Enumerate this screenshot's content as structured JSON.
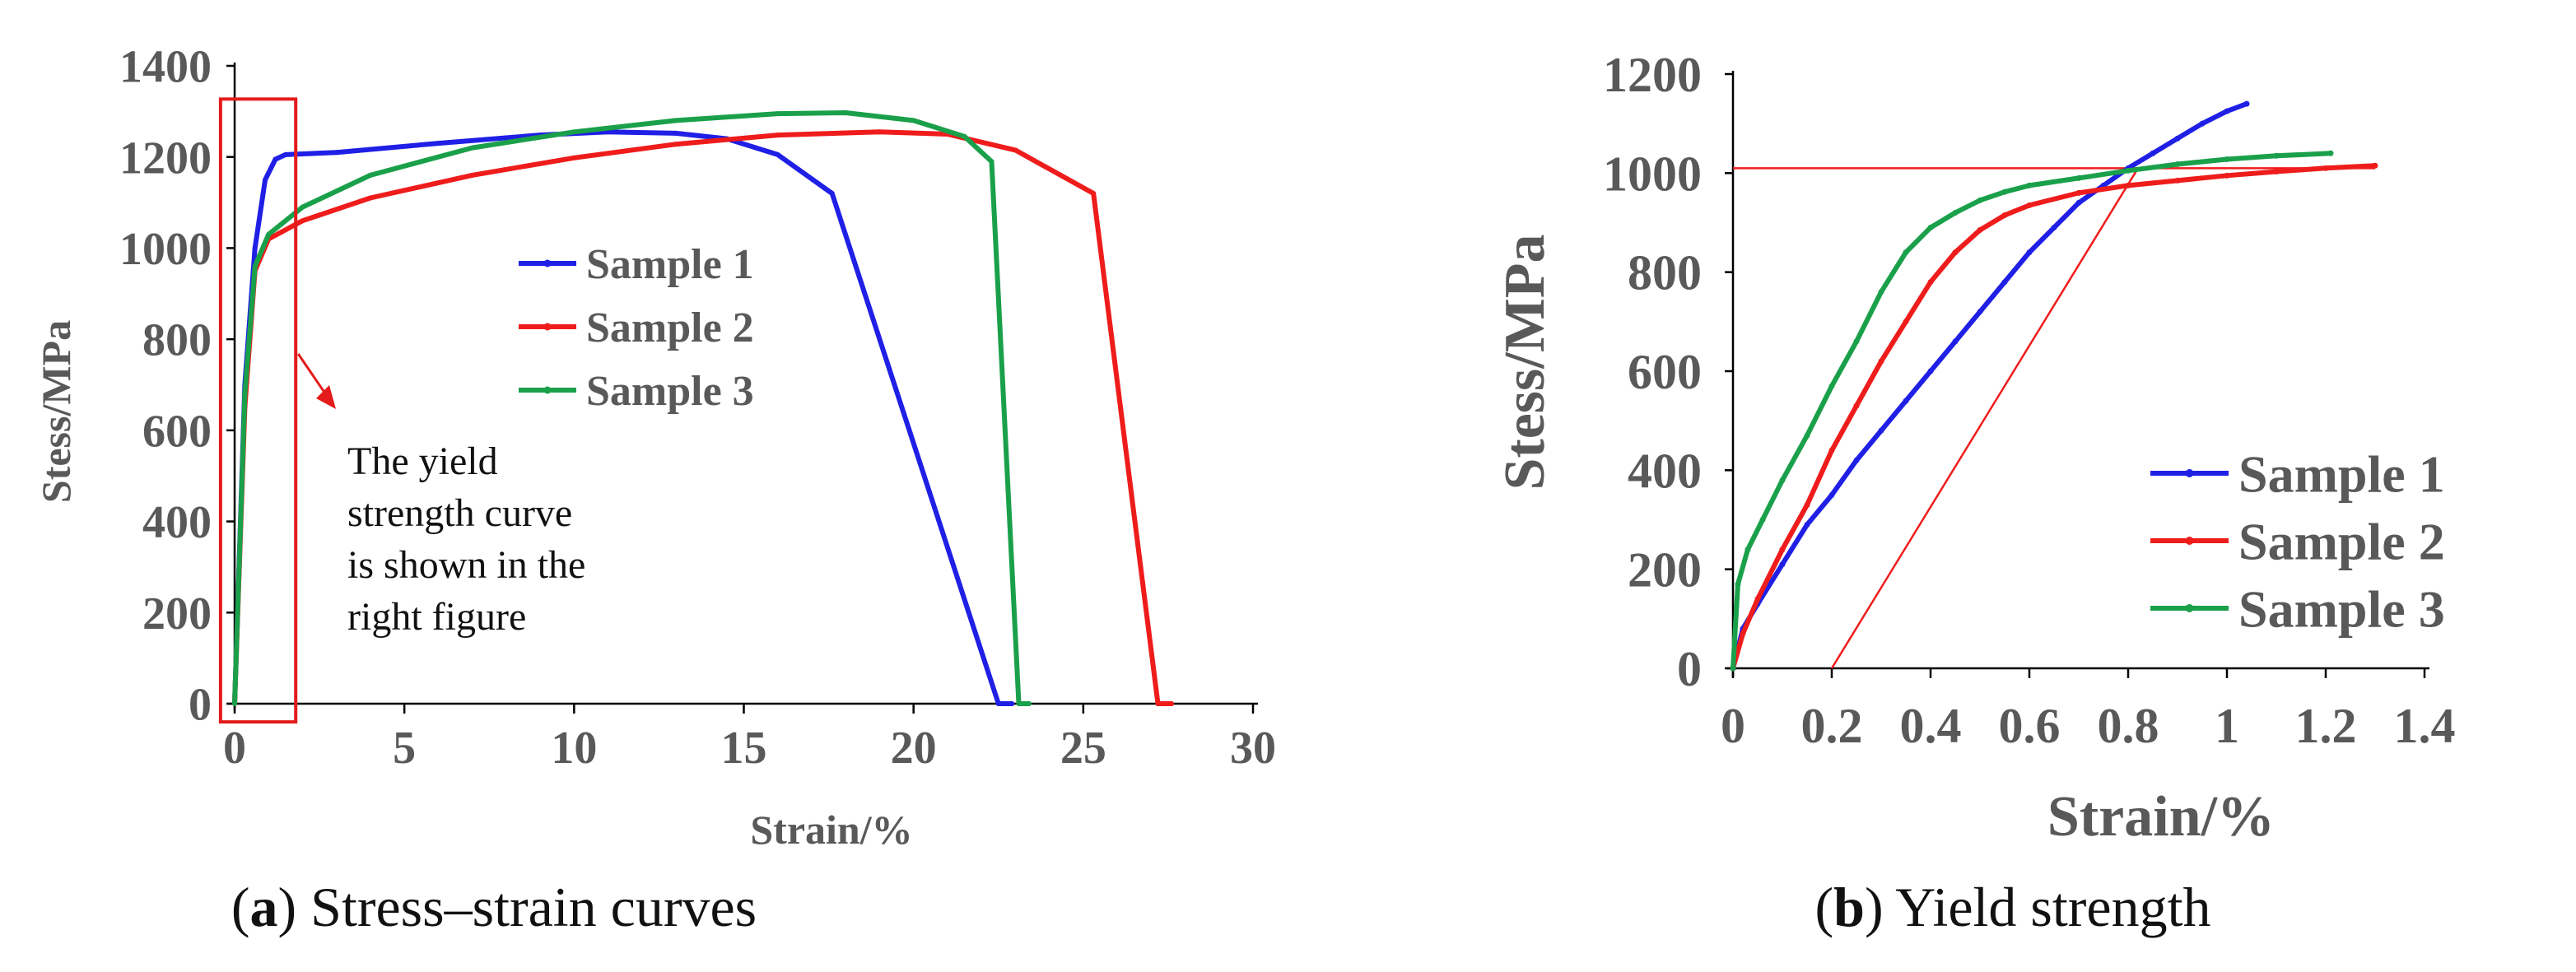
{
  "chart_data": [
    {
      "id": "a",
      "type": "line",
      "title": "",
      "caption_letter": "a",
      "caption_text": " Stress–strain curves",
      "xlabel": "Strain/%",
      "ylabel": "Stess/MPa",
      "xlim": [
        0,
        30
      ],
      "ylim": [
        0,
        1400
      ],
      "xticks": [
        0,
        5,
        10,
        15,
        20,
        25,
        30
      ],
      "yticks": [
        0,
        200,
        400,
        600,
        800,
        1000,
        1200,
        1400
      ],
      "legend": [
        "Sample 1",
        "Sample 2",
        "Sample 3"
      ],
      "legend_position": "center-right",
      "series": [
        {
          "name": "Sample 1",
          "color": "#1f1fe6",
          "x": [
            0,
            0.3,
            0.6,
            0.9,
            1.2,
            1.5,
            3,
            6,
            9,
            11,
            13,
            14.5,
            16,
            17.6,
            22.5,
            22.9
          ],
          "y": [
            0,
            700,
            1000,
            1150,
            1195,
            1205,
            1210,
            1230,
            1248,
            1255,
            1252,
            1240,
            1205,
            1120,
            0,
            0
          ]
        },
        {
          "name": "Sample 2",
          "color": "#ef1c1c",
          "x": [
            0,
            0.3,
            0.6,
            1,
            2,
            4,
            7,
            10,
            13,
            16,
            19,
            21,
            23,
            25.3,
            27.2,
            27.6
          ],
          "y": [
            0,
            650,
            950,
            1020,
            1060,
            1110,
            1160,
            1198,
            1228,
            1248,
            1255,
            1250,
            1215,
            1120,
            0,
            0
          ]
        },
        {
          "name": "Sample 3",
          "color": "#1aa04a",
          "x": [
            0,
            0.3,
            0.6,
            1,
            2,
            4,
            7,
            10,
            13,
            16,
            18,
            20,
            21.5,
            22.3,
            23.1,
            23.4
          ],
          "y": [
            0,
            680,
            960,
            1030,
            1090,
            1160,
            1220,
            1255,
            1280,
            1295,
            1297,
            1280,
            1245,
            1190,
            0,
            0
          ]
        }
      ],
      "annotation": {
        "lines": [
          "The yield",
          "strength curve",
          "is shown in the",
          "right figure"
        ],
        "box_x": [
          -0.1,
          1.8
        ],
        "box_y": [
          -40,
          1300
        ]
      }
    },
    {
      "id": "b",
      "type": "line",
      "title": "",
      "caption_letter": "b",
      "caption_text": " Yield strength",
      "xlabel": "Strain/%",
      "ylabel": "Stess/MPa",
      "xlim": [
        0,
        1.4
      ],
      "ylim": [
        0,
        1200
      ],
      "xticks": [
        0,
        0.2,
        0.4,
        0.6,
        0.8,
        1,
        1.2,
        1.4
      ],
      "xtick_labels": [
        "0",
        "0.2",
        "0.4",
        "0.6",
        "0.8",
        "1",
        "1.2",
        "1.4"
      ],
      "yticks": [
        0,
        200,
        400,
        600,
        800,
        1000,
        1200
      ],
      "legend": [
        "Sample 1",
        "Sample 2",
        "Sample 3"
      ],
      "legend_position": "bottom-right",
      "series": [
        {
          "name": "Sample 1",
          "color": "#1f1fe6",
          "x": [
            0,
            0.02,
            0.05,
            0.1,
            0.15,
            0.2,
            0.25,
            0.3,
            0.35,
            0.4,
            0.45,
            0.5,
            0.55,
            0.6,
            0.65,
            0.7,
            0.75,
            0.8,
            0.85,
            0.9,
            0.95,
            1.0,
            1.04
          ],
          "y": [
            0,
            80,
            130,
            210,
            290,
            350,
            420,
            480,
            540,
            600,
            660,
            720,
            780,
            840,
            890,
            940,
            975,
            1010,
            1040,
            1070,
            1100,
            1125,
            1140
          ]
        },
        {
          "name": "Sample 2",
          "color": "#ef1c1c",
          "x": [
            0,
            0.02,
            0.05,
            0.1,
            0.15,
            0.2,
            0.25,
            0.3,
            0.35,
            0.4,
            0.45,
            0.5,
            0.55,
            0.6,
            0.7,
            0.8,
            0.9,
            1.0,
            1.1,
            1.2,
            1.3
          ],
          "y": [
            0,
            70,
            140,
            240,
            330,
            440,
            530,
            620,
            700,
            780,
            840,
            885,
            915,
            935,
            960,
            975,
            985,
            995,
            1003,
            1010,
            1015
          ]
        },
        {
          "name": "Sample 3",
          "color": "#1aa04a",
          "x": [
            0,
            0.01,
            0.03,
            0.06,
            0.1,
            0.15,
            0.2,
            0.25,
            0.3,
            0.35,
            0.4,
            0.45,
            0.5,
            0.55,
            0.6,
            0.7,
            0.8,
            0.9,
            1.0,
            1.1,
            1.21
          ],
          "y": [
            0,
            170,
            240,
            300,
            380,
            470,
            570,
            660,
            760,
            840,
            890,
            920,
            945,
            962,
            975,
            990,
            1005,
            1018,
            1028,
            1035,
            1040
          ]
        }
      ],
      "reference_lines": [
        {
          "name": "offset-line",
          "color": "#ef1c1c",
          "x": [
            0.2,
            0.82
          ],
          "y": [
            0,
            1010
          ]
        },
        {
          "name": "yield-level-line",
          "color": "#ef1c1c",
          "x": [
            0,
            1.3
          ],
          "y": [
            1010,
            1010
          ]
        }
      ]
    }
  ]
}
